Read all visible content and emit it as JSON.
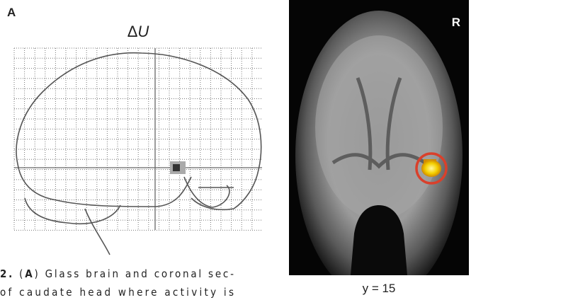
{
  "panel_label": "A",
  "glass_brain": {
    "title_symbol": "Δ",
    "title_variable": "U"
  },
  "coronal": {
    "side_label": "R",
    "slice_label": "y = 15"
  },
  "caption": {
    "lines": [
      [
        {
          "text": "2.",
          "bold": true
        },
        {
          "text": " (",
          "bold": false
        },
        {
          "text": "A",
          "bold": true
        },
        {
          "text": ") Glass brain and coronal sec-",
          "bold": false
        }
      ],
      [
        {
          "text": "of caudate head where activity is",
          "bold": false
        }
      ]
    ]
  }
}
